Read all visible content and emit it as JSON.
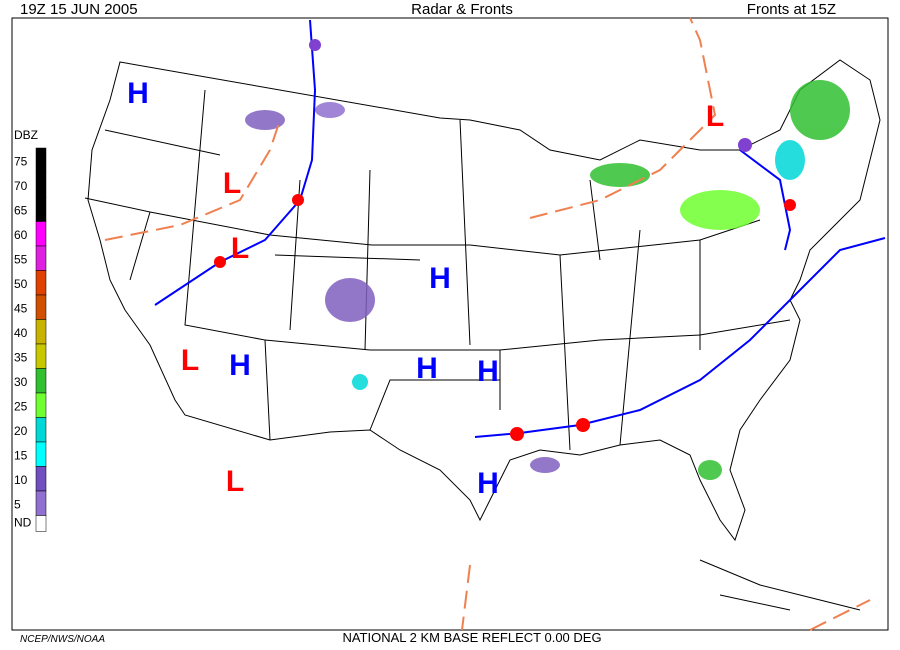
{
  "header": {
    "left": "19Z  15 JUN  2005",
    "center": "Radar & Fronts",
    "right": "Fronts at 15Z"
  },
  "legend": {
    "title": "DBZ",
    "levels": [
      75,
      70,
      65,
      60,
      55,
      50,
      45,
      40,
      35,
      30,
      25,
      20,
      15,
      10,
      5
    ],
    "colors": [
      "#000000",
      "#000000",
      "#000000",
      "#ff00ff",
      "#e020e0",
      "#e04000",
      "#d05000",
      "#c8b400",
      "#c8c800",
      "#30c030",
      "#70ff30",
      "#00d8d8",
      "#00ffff",
      "#7050c0",
      "#9070d0"
    ],
    "no_data": "ND"
  },
  "pressure_centers": [
    {
      "label": "H",
      "color": "#0000ff"
    },
    {
      "label": "L",
      "color": "#ff0000"
    },
    {
      "label": "L",
      "color": "#ff0000"
    },
    {
      "label": "H",
      "color": "#0000ff"
    },
    {
      "label": "L",
      "color": "#ff0000"
    },
    {
      "label": "H",
      "color": "#0000ff"
    },
    {
      "label": "H",
      "color": "#0000ff"
    },
    {
      "label": "H",
      "color": "#0000ff"
    },
    {
      "label": "L",
      "color": "#ff0000"
    },
    {
      "label": "H",
      "color": "#0000ff"
    },
    {
      "label": "L",
      "color": "#ff0000"
    }
  ],
  "footer": {
    "left": "NCEP/NWS/NOAA",
    "center": "NATIONAL 2 KM BASE REFLECT 0.00 DEG"
  }
}
